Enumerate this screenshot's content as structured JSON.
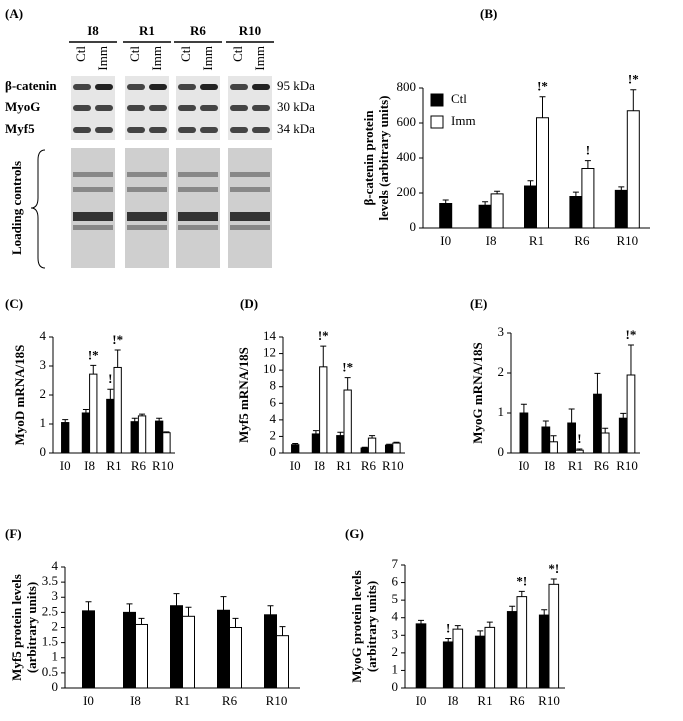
{
  "blot": {
    "panel_label": "(A)",
    "groups": [
      "I8",
      "R1",
      "R6",
      "R10"
    ],
    "lanes": [
      "Ctl",
      "Imm"
    ],
    "proteins": [
      "β-catenin",
      "MyoG",
      "Myf5"
    ],
    "sizes": [
      "95 kDa",
      "30 kDa",
      "34 kDa"
    ],
    "loading_label": "Loading controls"
  },
  "chart_data": [
    {
      "type": "bar",
      "panel_label": "(B)",
      "ylabel": [
        "β-catenin protein",
        "levels (arbitrary units)"
      ],
      "categories": [
        "I0",
        "I8",
        "R1",
        "R6",
        "R10"
      ],
      "ylim": [
        0,
        800
      ],
      "yticks": [
        0,
        200,
        400,
        600,
        800
      ],
      "legend": "upper left",
      "series": [
        {
          "name": "Ctl",
          "color": "#000000",
          "values": [
            140,
            130,
            240,
            180,
            215
          ],
          "errors": [
            20,
            20,
            30,
            25,
            20
          ],
          "annotations": [
            null,
            null,
            null,
            null,
            null
          ]
        },
        {
          "name": "Imm",
          "color": "#ffffff",
          "values": [
            null,
            195,
            630,
            340,
            670
          ],
          "errors": [
            null,
            15,
            120,
            45,
            120
          ],
          "annotations": [
            null,
            null,
            "!*",
            "!",
            "!*"
          ]
        }
      ]
    },
    {
      "type": "bar",
      "panel_label": "(C)",
      "ylabel": [
        "MyoD mRNA/18S"
      ],
      "categories": [
        "I0",
        "I8",
        "R1",
        "R6",
        "R10"
      ],
      "ylim": [
        0,
        4
      ],
      "yticks": [
        0,
        1,
        2,
        3,
        4
      ],
      "series": [
        {
          "color": "#000000",
          "values": [
            1.05,
            1.38,
            1.85,
            1.08,
            1.1
          ],
          "errors": [
            0.1,
            0.12,
            0.35,
            0.12,
            0.1
          ],
          "annotations": [
            null,
            null,
            "!",
            null,
            null
          ]
        },
        {
          "color": "#ffffff",
          "values": [
            null,
            2.72,
            2.95,
            1.28,
            0.7
          ],
          "errors": [
            null,
            0.3,
            0.6,
            0.06,
            0.03
          ],
          "annotations": [
            null,
            "!*",
            "!*",
            null,
            null
          ]
        }
      ]
    },
    {
      "type": "bar",
      "panel_label": "(D)",
      "ylabel": [
        "Myf5 mRNA/18S"
      ],
      "categories": [
        "I0",
        "I8",
        "R1",
        "R6",
        "R10"
      ],
      "ylim": [
        0,
        14
      ],
      "yticks": [
        0,
        2,
        4,
        6,
        8,
        10,
        12,
        14
      ],
      "series": [
        {
          "color": "#000000",
          "values": [
            1.0,
            2.3,
            2.1,
            0.6,
            0.95
          ],
          "errors": [
            0.15,
            0.4,
            0.4,
            0.1,
            0.1
          ],
          "annotations": [
            null,
            null,
            null,
            null,
            null
          ]
        },
        {
          "color": "#ffffff",
          "values": [
            null,
            10.4,
            7.6,
            1.8,
            1.2
          ],
          "errors": [
            null,
            2.5,
            1.5,
            0.3,
            0.1
          ],
          "annotations": [
            null,
            "!*",
            "!*",
            null,
            null
          ]
        }
      ]
    },
    {
      "type": "bar",
      "panel_label": "(E)",
      "ylabel": [
        "MyoG mRNA/18S"
      ],
      "categories": [
        "I0",
        "I8",
        "R1",
        "R6",
        "R10"
      ],
      "ylim": [
        0,
        3
      ],
      "yticks": [
        0,
        1,
        2,
        3
      ],
      "series": [
        {
          "color": "#000000",
          "values": [
            1.0,
            0.65,
            0.75,
            1.47,
            0.87
          ],
          "errors": [
            0.22,
            0.15,
            0.35,
            0.52,
            0.12
          ],
          "annotations": [
            null,
            null,
            null,
            null,
            null
          ]
        },
        {
          "color": "#ffffff",
          "values": [
            null,
            0.28,
            0.07,
            0.5,
            1.95
          ],
          "errors": [
            null,
            0.15,
            0.03,
            0.12,
            0.75
          ],
          "annotations": [
            null,
            null,
            "!",
            null,
            "!*"
          ]
        }
      ]
    },
    {
      "type": "bar",
      "panel_label": "(F)",
      "ylabel": [
        "Myf5 protein levels",
        "(arbitrary units)"
      ],
      "categories": [
        "I0",
        "I8",
        "R1",
        "R6",
        "R10"
      ],
      "ylim": [
        0,
        4
      ],
      "yticks": [
        0,
        0.5,
        1,
        1.5,
        2,
        2.5,
        3,
        3.5,
        4
      ],
      "series": [
        {
          "color": "#000000",
          "values": [
            2.55,
            2.5,
            2.72,
            2.57,
            2.42
          ],
          "errors": [
            0.3,
            0.28,
            0.4,
            0.45,
            0.3
          ],
          "annotations": [
            null,
            null,
            null,
            null,
            null
          ]
        },
        {
          "color": "#ffffff",
          "values": [
            null,
            2.1,
            2.37,
            2.0,
            1.73
          ],
          "errors": [
            null,
            0.2,
            0.3,
            0.3,
            0.3
          ],
          "annotations": [
            null,
            null,
            null,
            null,
            null
          ]
        }
      ]
    },
    {
      "type": "bar",
      "panel_label": "(G)",
      "ylabel": [
        "MyoG protein levels",
        "(arbitrary units)"
      ],
      "categories": [
        "I0",
        "I8",
        "R1",
        "R6",
        "R10"
      ],
      "ylim": [
        0,
        7
      ],
      "yticks": [
        0,
        1,
        2,
        3,
        4,
        5,
        6,
        7
      ],
      "series": [
        {
          "color": "#000000",
          "values": [
            3.65,
            2.62,
            2.95,
            4.35,
            4.15
          ],
          "errors": [
            0.2,
            0.2,
            0.3,
            0.3,
            0.3
          ],
          "annotations": [
            null,
            "!",
            null,
            null,
            null
          ]
        },
        {
          "color": "#ffffff",
          "values": [
            null,
            3.35,
            3.45,
            5.2,
            5.9
          ],
          "errors": [
            null,
            0.2,
            0.3,
            0.3,
            0.3
          ],
          "annotations": [
            null,
            null,
            null,
            "*!",
            "*!"
          ]
        }
      ]
    }
  ]
}
